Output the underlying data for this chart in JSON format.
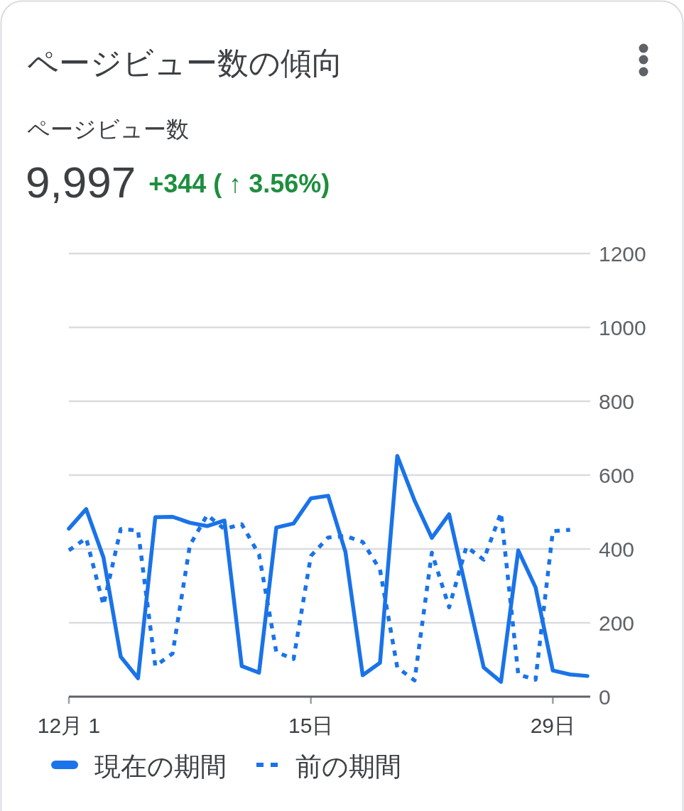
{
  "chart_data": {
    "type": "line",
    "title": "ページビュー数の傾向",
    "subtitle": "ページビュー数",
    "annotations": [
      "9,997",
      "+344 ( ↑ 3.56%)"
    ],
    "x": [
      1,
      2,
      3,
      4,
      5,
      6,
      7,
      8,
      9,
      10,
      11,
      12,
      13,
      14,
      15,
      16,
      17,
      18,
      19,
      20,
      21,
      22,
      23,
      24,
      25,
      26,
      27,
      28,
      29,
      30,
      31
    ],
    "series": [
      {
        "name": "現在の期間",
        "color": "#1a73e8",
        "line_style": "solid",
        "values": [
          455,
          508,
          377,
          108,
          50,
          486,
          487,
          471,
          462,
          477,
          83,
          65,
          458,
          469,
          537,
          544,
          392,
          58,
          92,
          652,
          531,
          430,
          494,
          287,
          79,
          40,
          396,
          296,
          71,
          60,
          56
        ]
      },
      {
        "name": "前の期間",
        "color": "#1a73e8",
        "line_style": "dotted",
        "values": [
          396,
          429,
          248,
          454,
          450,
          83,
          117,
          410,
          492,
          454,
          467,
          385,
          121,
          102,
          381,
          431,
          435,
          419,
          344,
          79,
          44,
          390,
          242,
          406,
          371,
          498,
          60,
          46,
          448,
          452,
          null
        ]
      }
    ],
    "xlim": [
      1,
      31
    ],
    "xticks": [
      {
        "value": 1,
        "label": "12月 1"
      },
      {
        "value": 15,
        "label": "15日"
      },
      {
        "value": 29,
        "label": "29日"
      }
    ],
    "ylim": [
      0,
      1200
    ],
    "yticks": [
      0,
      200,
      400,
      600,
      800,
      1000,
      1200
    ],
    "grid": "y",
    "legend": "bottom"
  }
}
